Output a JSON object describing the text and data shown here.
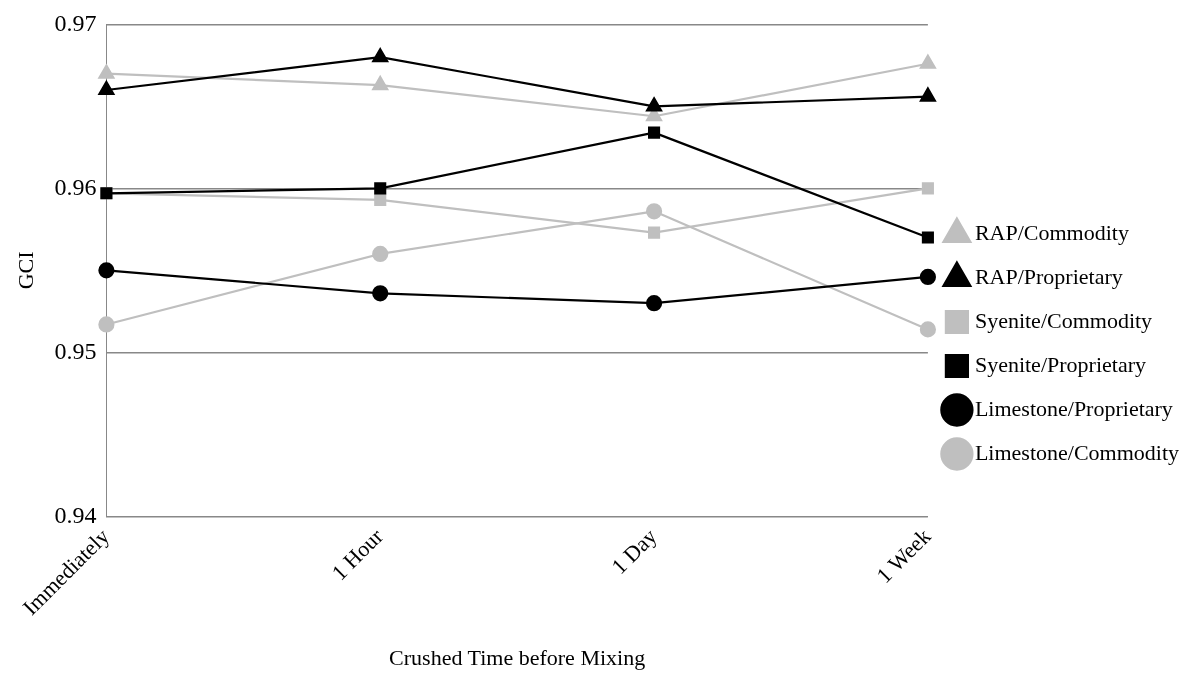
{
  "chart_data": {
    "type": "line",
    "xlabel": "Crushed Time before Mixing",
    "ylabel": "GCI",
    "categories": [
      "Immediately",
      "1 Hour",
      "1 Day",
      "1 Week"
    ],
    "ylim": [
      0.94,
      0.97
    ],
    "yticks": [
      0.94,
      0.95,
      0.96,
      0.97
    ],
    "grid": "y",
    "legend": "right",
    "series": [
      {
        "name": "RAP/Commodity",
        "color": "#bfbfbf",
        "marker": "triangle",
        "values": [
          0.967,
          0.9663,
          0.9644,
          0.9676
        ]
      },
      {
        "name": "RAP/Proprietary",
        "color": "#000000",
        "marker": "triangle",
        "values": [
          0.966,
          0.968,
          0.965,
          0.9656
        ]
      },
      {
        "name": "Syenite/Commodity",
        "color": "#bfbfbf",
        "marker": "square",
        "values": [
          0.9597,
          0.9593,
          0.9573,
          0.96
        ]
      },
      {
        "name": "Syenite/Proprietary",
        "color": "#000000",
        "marker": "square",
        "values": [
          0.9597,
          0.96,
          0.9634,
          0.957
        ]
      },
      {
        "name": "Limestone/Proprietary",
        "color": "#000000",
        "marker": "circle",
        "values": [
          0.955,
          0.9536,
          0.953,
          0.9546
        ]
      },
      {
        "name": "Limestone/Commodity",
        "color": "#bfbfbf",
        "marker": "circle",
        "values": [
          0.9517,
          0.956,
          0.9586,
          0.9514
        ]
      }
    ]
  }
}
